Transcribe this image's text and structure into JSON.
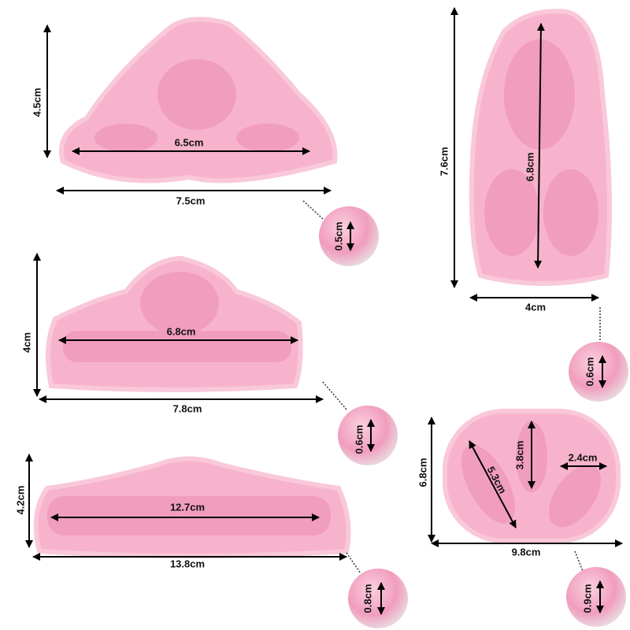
{
  "molds": [
    {
      "height": "4.5cm",
      "inner": [
        "6.5cm"
      ],
      "width": "7.5cm",
      "depth": "0.5cm"
    },
    {
      "height": "7.6cm",
      "inner": [
        "6.8cm"
      ],
      "width": "4cm",
      "depth": "0.6cm"
    },
    {
      "height": "4cm",
      "inner": [
        "6.8cm"
      ],
      "width": "7.8cm",
      "depth": "0.6cm"
    },
    {
      "height": "4.2cm",
      "inner": [
        "12.7cm"
      ],
      "width": "13.8cm",
      "depth": "0.8cm"
    },
    {
      "height": "6.8cm",
      "inner": [
        "5.3cm",
        "3.8cm",
        "2.4cm"
      ],
      "width": "9.8cm",
      "depth": "0.9cm"
    }
  ]
}
